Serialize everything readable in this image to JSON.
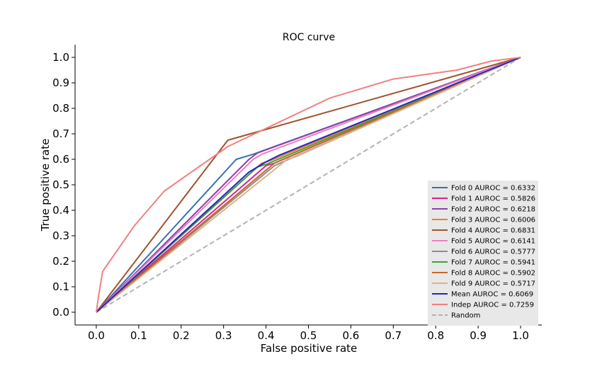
{
  "chart_data": {
    "type": "line",
    "title": "ROC curve",
    "xlabel": "False positive rate",
    "ylabel": "True positive rate",
    "xlim": [
      -0.05,
      1.05
    ],
    "ylim": [
      -0.05,
      1.05
    ],
    "x_ticks": [
      "0.0",
      "0.1",
      "0.2",
      "0.3",
      "0.4",
      "0.5",
      "0.6",
      "0.7",
      "0.8",
      "0.9",
      "1.0"
    ],
    "y_ticks": [
      "0.0",
      "0.1",
      "0.2",
      "0.3",
      "0.4",
      "0.5",
      "0.6",
      "0.7",
      "0.8",
      "0.9",
      "1.0"
    ],
    "grid": false,
    "legend_position": "lower right",
    "series": [
      {
        "name": "Fold 0 AUROC = 0.6332",
        "color": "#3572b0",
        "dashed": false,
        "points": [
          [
            0,
            0
          ],
          [
            0.33,
            0.6
          ],
          [
            0.37,
            0.62
          ],
          [
            1,
            1
          ]
        ]
      },
      {
        "name": "Fold 1 AUROC = 0.5826",
        "color": "#e0208a",
        "dashed": false,
        "points": [
          [
            0,
            0
          ],
          [
            0.4,
            0.575
          ],
          [
            0.42,
            0.585
          ],
          [
            1,
            1
          ]
        ]
      },
      {
        "name": "Fold 2 AUROC = 0.6218",
        "color": "#8e3fa8",
        "dashed": false,
        "points": [
          [
            0,
            0
          ],
          [
            0.36,
            0.6
          ],
          [
            0.38,
            0.625
          ],
          [
            1,
            1
          ]
        ]
      },
      {
        "name": "Fold 3 AUROC = 0.6006",
        "color": "#f07f1e",
        "dashed": false,
        "points": [
          [
            0,
            0
          ],
          [
            0.39,
            0.585
          ],
          [
            0.41,
            0.595
          ],
          [
            1,
            1
          ]
        ]
      },
      {
        "name": "Fold 4 AUROC = 0.6831",
        "color": "#a0522d",
        "dashed": false,
        "points": [
          [
            0,
            0
          ],
          [
            0.31,
            0.675
          ],
          [
            1,
            1
          ]
        ]
      },
      {
        "name": "Fold 5 AUROC = 0.6141",
        "color": "#f07ebc",
        "dashed": false,
        "points": [
          [
            0,
            0
          ],
          [
            0.37,
            0.6
          ],
          [
            0.39,
            0.62
          ],
          [
            1,
            1
          ]
        ]
      },
      {
        "name": "Fold 6 AUROC = 0.5777",
        "color": "#8c8c8c",
        "dashed": false,
        "points": [
          [
            0,
            0
          ],
          [
            0.42,
            0.575
          ],
          [
            0.44,
            0.59
          ],
          [
            1,
            1
          ]
        ]
      },
      {
        "name": "Fold 7 AUROC = 0.5941",
        "color": "#3ca33c",
        "dashed": false,
        "points": [
          [
            0,
            0
          ],
          [
            0.38,
            0.57
          ],
          [
            0.4,
            0.58
          ],
          [
            1,
            1
          ]
        ]
      },
      {
        "name": "Fold 8 AUROC = 0.5902",
        "color": "#c86428",
        "dashed": false,
        "points": [
          [
            0,
            0
          ],
          [
            0.42,
            0.585
          ],
          [
            0.44,
            0.6
          ],
          [
            1,
            1
          ]
        ]
      },
      {
        "name": "Fold 9 AUROC = 0.5717",
        "color": "#ddb283",
        "dashed": false,
        "points": [
          [
            0,
            0
          ],
          [
            0.45,
            0.6
          ],
          [
            0.47,
            0.61
          ],
          [
            1,
            1
          ]
        ]
      },
      {
        "name": "Mean AUROC = 0.6069",
        "color": "#2626c8",
        "dashed": false,
        "points": [
          [
            0,
            0
          ],
          [
            0.36,
            0.55
          ],
          [
            0.4,
            0.59
          ],
          [
            0.43,
            0.615
          ],
          [
            1,
            1
          ]
        ]
      },
      {
        "name": "Indep AUROC = 0.7259",
        "color": "#f08080",
        "dashed": false,
        "points": [
          [
            0,
            0
          ],
          [
            0.005,
            0.06
          ],
          [
            0.015,
            0.16
          ],
          [
            0.09,
            0.34
          ],
          [
            0.16,
            0.475
          ],
          [
            0.31,
            0.65
          ],
          [
            0.55,
            0.84
          ],
          [
            0.7,
            0.915
          ],
          [
            0.85,
            0.95
          ],
          [
            0.93,
            0.985
          ],
          [
            1,
            1
          ]
        ]
      },
      {
        "name": "Random",
        "color": "#b2b2b2",
        "dashed": true,
        "points": [
          [
            0,
            0
          ],
          [
            1,
            1
          ]
        ]
      }
    ]
  }
}
